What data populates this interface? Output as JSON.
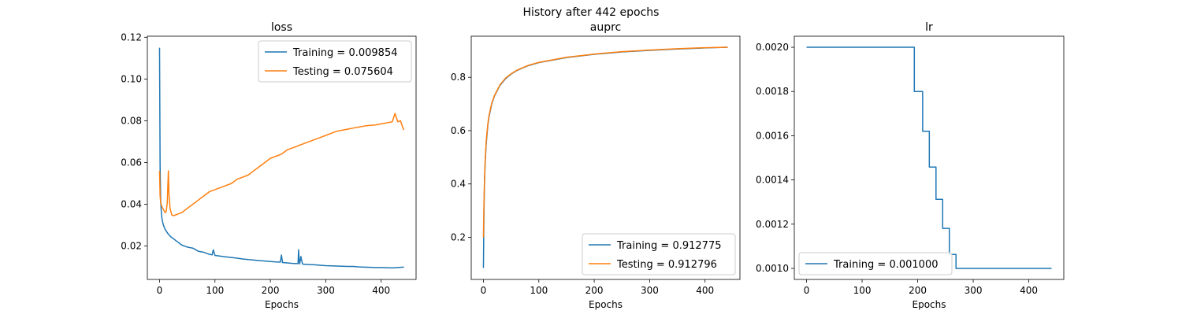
{
  "figure_title": "History after 442 epochs",
  "colors": {
    "training": "#1f77b4",
    "testing": "#ff7f0e"
  },
  "chart_data": [
    {
      "type": "line",
      "title": "loss",
      "xlabel": "Epochs",
      "ylabel": "",
      "xlim": [
        -22,
        463
      ],
      "ylim": [
        0.004,
        0.1205
      ],
      "xticks": [
        0,
        100,
        200,
        300,
        400
      ],
      "yticks": [
        0.02,
        0.04,
        0.06,
        0.08,
        0.1,
        0.12
      ],
      "ytick_labels": [
        "0.02",
        "0.04",
        "0.06",
        "0.08",
        "0.10",
        "0.12"
      ],
      "legend_position": "upper right",
      "series": [
        {
          "name": "Training = 0.009854",
          "color": "#1f77b4",
          "x": [
            0,
            1,
            2,
            3,
            4,
            5,
            7,
            10,
            15,
            20,
            30,
            40,
            50,
            60,
            70,
            80,
            90,
            95,
            97,
            100,
            120,
            130,
            140,
            150,
            160,
            170,
            180,
            190,
            200,
            210,
            218,
            220,
            222,
            230,
            240,
            250,
            251,
            252,
            253,
            255,
            258,
            260,
            270,
            280,
            290,
            300,
            310,
            320,
            330,
            340,
            350,
            360,
            370,
            380,
            390,
            400,
            410,
            420,
            430,
            441
          ],
          "y": [
            0.115,
            0.058,
            0.042,
            0.037,
            0.034,
            0.032,
            0.03,
            0.028,
            0.026,
            0.0245,
            0.0225,
            0.0205,
            0.0195,
            0.019,
            0.0175,
            0.017,
            0.016,
            0.0158,
            0.0182,
            0.0155,
            0.0148,
            0.0145,
            0.0142,
            0.0138,
            0.0135,
            0.0133,
            0.013,
            0.0128,
            0.0126,
            0.0124,
            0.0123,
            0.0157,
            0.0121,
            0.0119,
            0.0117,
            0.0116,
            0.0182,
            0.0128,
            0.0114,
            0.015,
            0.0114,
            0.0113,
            0.0111,
            0.011,
            0.0108,
            0.0106,
            0.0105,
            0.0104,
            0.0103,
            0.0102,
            0.0102,
            0.01,
            0.0099,
            0.0098,
            0.0097,
            0.0097,
            0.0096,
            0.0095,
            0.0097,
            0.0099
          ]
        },
        {
          "name": "Testing = 0.075604",
          "color": "#ff7f0e",
          "x": [
            0,
            1,
            2,
            4,
            6,
            8,
            10,
            12,
            14,
            15,
            16,
            17,
            19,
            22,
            25,
            30,
            35,
            40,
            50,
            60,
            70,
            80,
            90,
            100,
            110,
            120,
            130,
            140,
            150,
            160,
            170,
            180,
            190,
            200,
            210,
            220,
            230,
            240,
            250,
            260,
            270,
            280,
            290,
            300,
            310,
            320,
            330,
            340,
            350,
            360,
            370,
            380,
            390,
            400,
            410,
            420,
            425,
            430,
            435,
            438,
            441
          ],
          "y": [
            0.056,
            0.044,
            0.041,
            0.039,
            0.038,
            0.037,
            0.036,
            0.0365,
            0.041,
            0.049,
            0.056,
            0.045,
            0.038,
            0.035,
            0.0345,
            0.035,
            0.0355,
            0.036,
            0.038,
            0.04,
            0.042,
            0.044,
            0.046,
            0.047,
            0.048,
            0.049,
            0.05,
            0.052,
            0.053,
            0.054,
            0.056,
            0.058,
            0.06,
            0.062,
            0.063,
            0.064,
            0.066,
            0.067,
            0.068,
            0.069,
            0.07,
            0.071,
            0.072,
            0.073,
            0.074,
            0.075,
            0.0755,
            0.076,
            0.0765,
            0.077,
            0.0775,
            0.0778,
            0.078,
            0.0785,
            0.079,
            0.0795,
            0.0835,
            0.0795,
            0.08,
            0.0775,
            0.0756
          ]
        }
      ]
    },
    {
      "type": "line",
      "title": "auprc",
      "xlabel": "Epochs",
      "ylabel": "",
      "xlim": [
        -22,
        463
      ],
      "ylim": [
        0.042,
        0.954
      ],
      "xticks": [
        0,
        100,
        200,
        300,
        400
      ],
      "yticks": [
        0.2,
        0.4,
        0.6,
        0.8
      ],
      "ytick_labels": [
        "0.2",
        "0.4",
        "0.6",
        "0.8"
      ],
      "legend_position": "lower right",
      "series": [
        {
          "name": "Training = 0.912775",
          "color": "#1f77b4",
          "x": [
            0,
            1,
            2,
            3,
            5,
            8,
            10,
            15,
            20,
            30,
            40,
            50,
            60,
            80,
            100,
            150,
            200,
            250,
            300,
            350,
            400,
            441
          ],
          "y": [
            0.085,
            0.3,
            0.4,
            0.47,
            0.55,
            0.62,
            0.65,
            0.7,
            0.73,
            0.77,
            0.795,
            0.812,
            0.825,
            0.843,
            0.855,
            0.874,
            0.886,
            0.895,
            0.901,
            0.906,
            0.91,
            0.9128
          ]
        },
        {
          "name": "Testing = 0.912796",
          "color": "#ff7f0e",
          "x": [
            0,
            1,
            2,
            3,
            5,
            8,
            10,
            15,
            20,
            30,
            40,
            50,
            60,
            80,
            100,
            150,
            200,
            250,
            300,
            350,
            400,
            441
          ],
          "y": [
            0.2,
            0.33,
            0.42,
            0.48,
            0.56,
            0.625,
            0.655,
            0.703,
            0.732,
            0.772,
            0.797,
            0.813,
            0.826,
            0.844,
            0.856,
            0.875,
            0.887,
            0.896,
            0.902,
            0.907,
            0.911,
            0.9128
          ]
        }
      ]
    },
    {
      "type": "line",
      "title": "lr",
      "xlabel": "Epochs",
      "ylabel": "",
      "xlim": [
        -22,
        463
      ],
      "ylim": [
        0.00095,
        0.00205
      ],
      "xticks": [
        0,
        100,
        200,
        300,
        400
      ],
      "yticks": [
        0.001,
        0.0012,
        0.0014,
        0.0016,
        0.0018,
        0.002
      ],
      "ytick_labels": [
        "0.0010",
        "0.0012",
        "0.0014",
        "0.0016",
        "0.0018",
        "0.0020"
      ],
      "legend_position": "lower left",
      "series": [
        {
          "name": "Training = 0.001000",
          "color": "#1f77b4",
          "x": [
            0,
            194,
            194,
            209,
            209,
            221,
            221,
            233,
            233,
            245,
            245,
            257,
            257,
            269,
            269,
            441
          ],
          "y": [
            0.002,
            0.002,
            0.0018,
            0.0018,
            0.00162,
            0.00162,
            0.001458,
            0.001458,
            0.001312,
            0.001312,
            0.001181,
            0.001181,
            0.001063,
            0.001063,
            0.001,
            0.001
          ]
        }
      ]
    }
  ]
}
